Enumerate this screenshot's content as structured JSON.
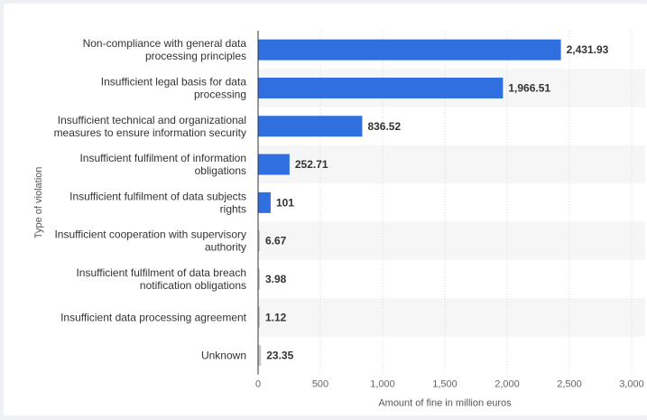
{
  "chart_data": {
    "type": "bar",
    "orientation": "horizontal",
    "title": "",
    "xlabel": "Amount of fine in million euros",
    "ylabel": "Type of violation",
    "xlim": [
      0,
      3000
    ],
    "xticks": [
      0,
      500,
      1000,
      1500,
      2000,
      2500,
      3000
    ],
    "xtick_labels": [
      "0",
      "500",
      "1,000",
      "1,500",
      "2,000",
      "2,500",
      "3,000"
    ],
    "grid": true,
    "categories": [
      [
        "Non-compliance with general data",
        "processing principles"
      ],
      [
        "Insufficient legal basis for data",
        "processing"
      ],
      [
        "Insufficient technical and organizational",
        "measures to ensure information security"
      ],
      [
        "Insufficient fulfilment of information",
        "obligations"
      ],
      [
        "Insufficient fulfilment of data subjects",
        "rights"
      ],
      [
        "Insufficient cooperation with supervisory",
        "authority"
      ],
      [
        "Insufficient fulfilment of data breach",
        "notification obligations"
      ],
      [
        "Insufficient data processing agreement"
      ],
      [
        "Unknown"
      ]
    ],
    "values": [
      2431.93,
      1966.51,
      836.52,
      252.71,
      101,
      6.67,
      3.98,
      1.12,
      23.35
    ],
    "value_labels": [
      "2,431.93",
      "1,966.51",
      "836.52",
      "252.71",
      "101",
      "6.67",
      "3.98",
      "1.12",
      "23.35"
    ],
    "colors": {
      "bar": "#2f6fe0",
      "bar_small": "#c8c8c8",
      "band": "#f6f6f6",
      "grid": "#d9d9d9",
      "axis": "#333333"
    }
  }
}
